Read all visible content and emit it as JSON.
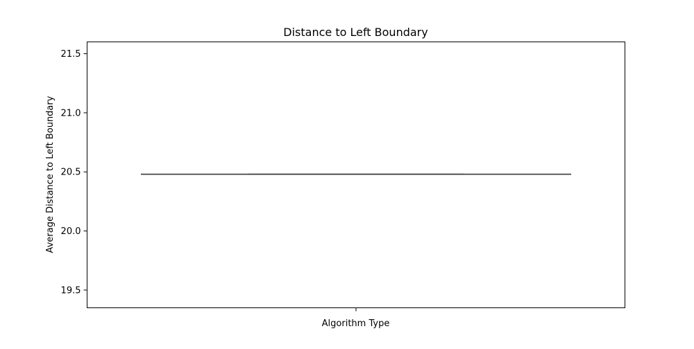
{
  "chart_data": {
    "type": "box",
    "title": "Distance to Left Boundary",
    "xlabel": "Algorithm Type",
    "ylabel": "Average Distance to Left Boundary",
    "categories": [
      ""
    ],
    "boxes": [
      {
        "category": "",
        "min": 20.48,
        "q1": 20.48,
        "median": 20.48,
        "q3": 20.48,
        "max": 20.48
      }
    ],
    "ylim": [
      19.35,
      21.6
    ],
    "yticks": [
      19.5,
      20.0,
      20.5,
      21.0,
      21.5
    ],
    "ytick_labels": [
      "19.5",
      "20.0",
      "20.5",
      "21.0",
      "21.5"
    ],
    "grid": false,
    "colors": {
      "line": "#3f3f3f",
      "axes": "#000000"
    }
  }
}
